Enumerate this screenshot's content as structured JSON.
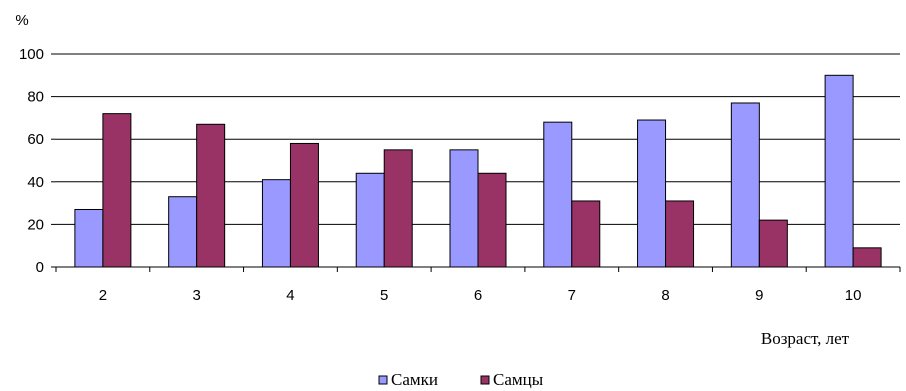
{
  "chart_data": {
    "type": "bar",
    "title": "",
    "ylabel": "%",
    "xlabel": "Возраст, лет",
    "ylim": [
      0,
      100
    ],
    "yticks": [
      0,
      20,
      40,
      60,
      80,
      100
    ],
    "grid": true,
    "legend_position": "bottom-center",
    "categories": [
      "2",
      "3",
      "4",
      "5",
      "6",
      "7",
      "8",
      "9",
      "10"
    ],
    "series": [
      {
        "name": "Самки",
        "color": "#9999ff",
        "values": [
          27,
          33,
          41,
          44,
          55,
          68,
          69,
          77,
          90
        ]
      },
      {
        "name": "Самцы",
        "color": "#993366",
        "values": [
          72,
          67,
          58,
          55,
          44,
          31,
          31,
          22,
          9
        ]
      }
    ]
  }
}
